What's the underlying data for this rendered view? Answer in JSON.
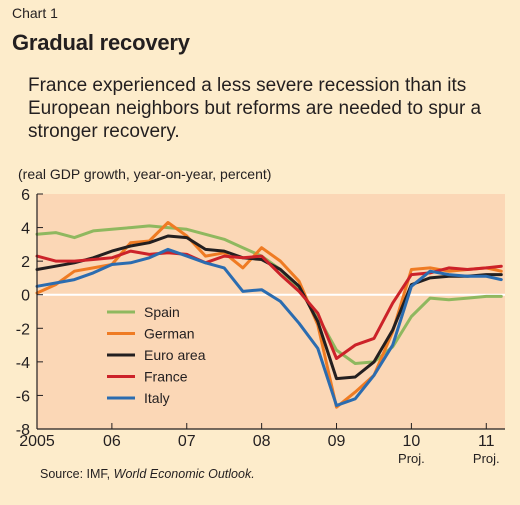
{
  "header": {
    "chart_label": "Chart 1",
    "title": "Gradual recovery",
    "subtitle": "France experienced a less severe recession than its European neighbors but reforms are needed to spur a stronger recovery.",
    "units": "(real GDP growth, year-on-year, percent)"
  },
  "footer": {
    "source_prefix": "Source: IMF, ",
    "source_publication": "World Economic Outlook."
  },
  "colors": {
    "page_background": "#fdeccb",
    "plot_background": "#fbd7b6",
    "axis": "#231f20",
    "zero_line": "#ffffff"
  },
  "chart_data": {
    "type": "line",
    "title": "Gradual recovery",
    "ylabel": "real GDP growth, year-on-year, percent",
    "ylim": [
      -8,
      6
    ],
    "yticks": [
      6,
      4,
      2,
      0,
      -2,
      -4,
      -6,
      -8
    ],
    "xlim": [
      2005,
      2011.25
    ],
    "xticks": [
      {
        "value": 2005,
        "label": "2005",
        "sub": ""
      },
      {
        "value": 2006,
        "label": "06",
        "sub": ""
      },
      {
        "value": 2007,
        "label": "07",
        "sub": ""
      },
      {
        "value": 2008,
        "label": "08",
        "sub": ""
      },
      {
        "value": 2009,
        "label": "09",
        "sub": ""
      },
      {
        "value": 2010,
        "label": "10",
        "sub": "Proj."
      },
      {
        "value": 2011,
        "label": "11",
        "sub": "Proj."
      }
    ],
    "grid": false,
    "legend_position": "bottom-left",
    "x": [
      2005.0,
      2005.25,
      2005.5,
      2005.75,
      2006.0,
      2006.25,
      2006.5,
      2006.75,
      2007.0,
      2007.25,
      2007.5,
      2007.75,
      2008.0,
      2008.25,
      2008.5,
      2008.75,
      2009.0,
      2009.25,
      2009.5,
      2009.75,
      2010.0,
      2010.25,
      2010.5,
      2010.75,
      2011.0,
      2011.2
    ],
    "series": [
      {
        "name": "Spain",
        "color": "#8fb85f",
        "values": [
          3.6,
          3.7,
          3.4,
          3.8,
          3.9,
          4.0,
          4.1,
          4.0,
          3.9,
          3.6,
          3.3,
          2.8,
          2.3,
          1.5,
          0.3,
          -1.3,
          -3.3,
          -4.1,
          -4.0,
          -3.1,
          -1.3,
          -0.2,
          -0.3,
          -0.2,
          -0.1,
          -0.1
        ]
      },
      {
        "name": "German",
        "color": "#ef7b23",
        "values": [
          0.1,
          0.6,
          1.4,
          1.6,
          1.8,
          3.1,
          3.2,
          4.3,
          3.5,
          2.3,
          2.5,
          1.6,
          2.8,
          2.0,
          0.8,
          -1.8,
          -6.7,
          -5.8,
          -4.8,
          -2.2,
          1.5,
          1.6,
          1.4,
          1.5,
          1.6,
          1.4
        ]
      },
      {
        "name": "Euro area",
        "color": "#231f20",
        "values": [
          1.5,
          1.7,
          1.9,
          2.2,
          2.6,
          2.9,
          3.1,
          3.5,
          3.4,
          2.7,
          2.6,
          2.2,
          2.1,
          1.5,
          0.5,
          -1.6,
          -5.0,
          -4.9,
          -4.0,
          -2.1,
          0.6,
          1.0,
          1.1,
          1.1,
          1.2,
          1.2
        ]
      },
      {
        "name": "France",
        "color": "#cc2229",
        "values": [
          2.3,
          2.0,
          2.0,
          2.1,
          2.2,
          2.6,
          2.4,
          2.5,
          2.4,
          1.9,
          2.3,
          2.2,
          2.3,
          1.2,
          0.2,
          -1.1,
          -3.8,
          -3.0,
          -2.6,
          -0.5,
          1.2,
          1.3,
          1.6,
          1.5,
          1.6,
          1.7
        ]
      },
      {
        "name": "Italy",
        "color": "#2b6cb0",
        "values": [
          0.5,
          0.7,
          0.9,
          1.3,
          1.8,
          1.9,
          2.2,
          2.7,
          2.3,
          1.9,
          1.6,
          0.2,
          0.3,
          -0.4,
          -1.7,
          -3.2,
          -6.6,
          -6.2,
          -4.8,
          -3.0,
          0.5,
          1.4,
          1.2,
          1.1,
          1.1,
          0.9
        ]
      }
    ]
  }
}
